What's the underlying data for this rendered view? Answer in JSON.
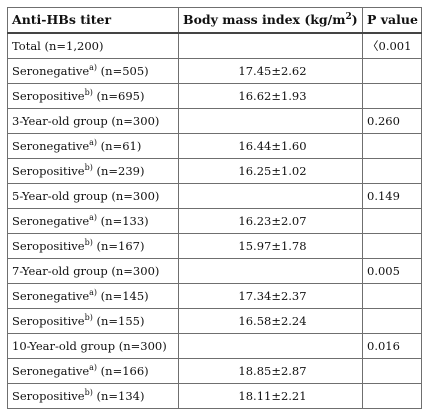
{
  "table": {
    "headers": {
      "col1": "Anti-HBs titer",
      "col2_text": "Body mass index (kg/m",
      "col2_sup": "2",
      "col2_close": ")",
      "col3": "P value"
    },
    "rows": [
      {
        "label": "Total (n=1,200)",
        "sup": "",
        "n": "",
        "value": "",
        "p": "〈0.001"
      },
      {
        "label": "Seronegative",
        "sup": "a)",
        "n": " (n=505)",
        "value": "17.45±2.62",
        "p": ""
      },
      {
        "label": "Seropositive",
        "sup": "b)",
        "n": " (n=695)",
        "value": "16.62±1.93",
        "p": ""
      },
      {
        "label": "3-Year-old group (n=300)",
        "sup": "",
        "n": "",
        "value": "",
        "p": "0.260"
      },
      {
        "label": "Seronegative",
        "sup": "a)",
        "n": " (n=61)",
        "value": "16.44±1.60",
        "p": ""
      },
      {
        "label": "Seropositive",
        "sup": "b)",
        "n": " (n=239)",
        "value": "16.25±1.02",
        "p": ""
      },
      {
        "label": "5-Year-old group (n=300)",
        "sup": "",
        "n": "",
        "value": "",
        "p": "0.149"
      },
      {
        "label": "Seronegative",
        "sup": "a)",
        "n": " (n=133)",
        "value": "16.23±2.07",
        "p": ""
      },
      {
        "label": "Seropositive",
        "sup": "b)",
        "n": " (n=167)",
        "value": "15.97±1.78",
        "p": ""
      },
      {
        "label": "7-Year-old group (n=300)",
        "sup": "",
        "n": "",
        "value": "",
        "p": "0.005"
      },
      {
        "label": "Seronegative",
        "sup": "a)",
        "n": " (n=145)",
        "value": "17.34±2.37",
        "p": ""
      },
      {
        "label": "Seropositive",
        "sup": "b)",
        "n": " (n=155)",
        "value": "16.58±2.24",
        "p": ""
      },
      {
        "label": "10-Year-old group (n=300)",
        "sup": "",
        "n": "",
        "value": "",
        "p": "0.016"
      },
      {
        "label": "Seronegative",
        "sup": "a)",
        "n": " (n=166)",
        "value": "18.85±2.87",
        "p": ""
      },
      {
        "label": "Seropositive",
        "sup": "b)",
        "n": " (n=134)",
        "value": "18.11±2.21",
        "p": ""
      }
    ]
  }
}
